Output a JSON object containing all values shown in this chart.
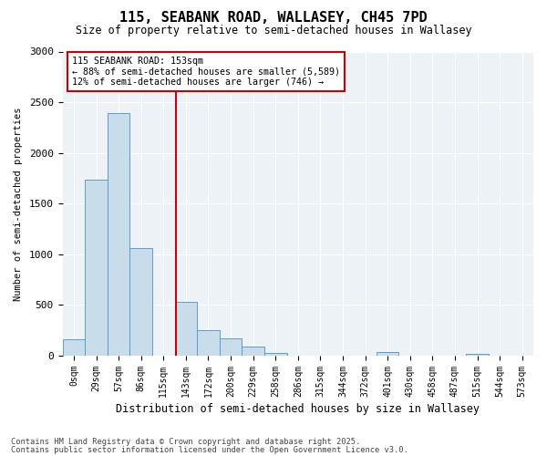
{
  "title1": "115, SEABANK ROAD, WALLASEY, CH45 7PD",
  "title2": "Size of property relative to semi-detached houses in Wallasey",
  "xlabel": "Distribution of semi-detached houses by size in Wallasey",
  "ylabel": "Number of semi-detached properties",
  "bin_labels": [
    "0sqm",
    "29sqm",
    "57sqm",
    "86sqm",
    "115sqm",
    "143sqm",
    "172sqm",
    "200sqm",
    "229sqm",
    "258sqm",
    "286sqm",
    "315sqm",
    "344sqm",
    "372sqm",
    "401sqm",
    "430sqm",
    "458sqm",
    "487sqm",
    "515sqm",
    "544sqm",
    "573sqm"
  ],
  "bar_heights": [
    165,
    1740,
    2390,
    1060,
    0,
    530,
    255,
    175,
    90,
    30,
    0,
    0,
    0,
    0,
    35,
    0,
    0,
    0,
    20,
    0,
    0
  ],
  "bar_color": "#c8dcea",
  "bar_edgecolor": "#5b9bd5",
  "vline_x": 4.55,
  "annotation_title": "115 SEABANK ROAD: 153sqm",
  "annotation_line1": "← 88% of semi-detached houses are smaller (5,589)",
  "annotation_line2": "12% of semi-detached houses are larger (746) →",
  "annotation_color": "#cc0000",
  "ylim": [
    0,
    3000
  ],
  "yticks": [
    0,
    500,
    1000,
    1500,
    2000,
    2500,
    3000
  ],
  "footer1": "Contains HM Land Registry data © Crown copyright and database right 2025.",
  "footer2": "Contains public sector information licensed under the Open Government Licence v3.0.",
  "bg_color": "#edf2f7"
}
